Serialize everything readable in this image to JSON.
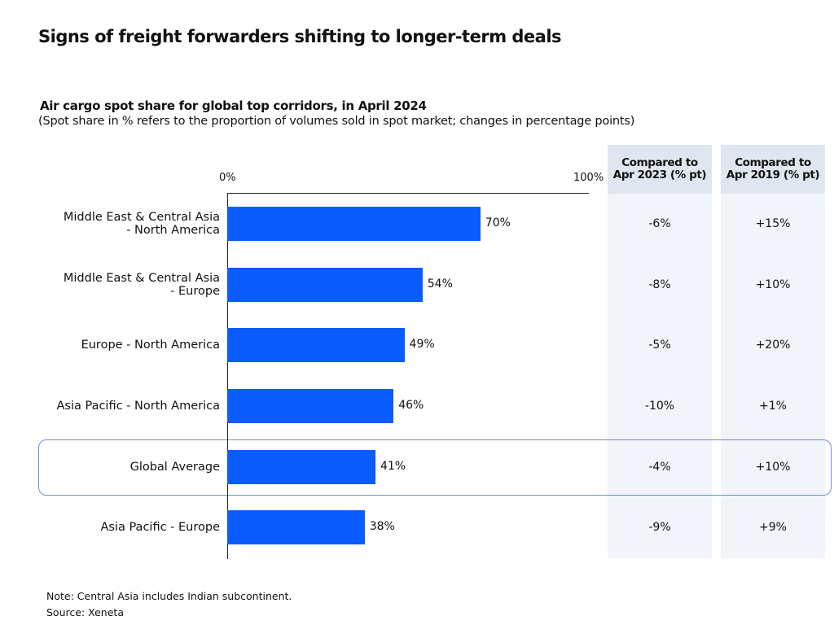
{
  "title": "Signs of freight forwarders shifting to longer-term deals",
  "chart_data": {
    "type": "bar",
    "title": "Air cargo spot share for global top corridors, in April 2024",
    "subtitle": "(Spot share in % refers to the proportion of volumes sold in spot market; changes in percentage points)",
    "xlim": [
      0,
      100
    ],
    "tick_labels": [
      "0%",
      "100%"
    ],
    "categories": [
      [
        "Middle East & Central Asia",
        "- North America"
      ],
      [
        "Middle East & Central Asia",
        "- Europe"
      ],
      [
        "Europe - North America"
      ],
      [
        "Asia Pacific - North America"
      ],
      [
        "Global Average"
      ],
      [
        "Asia Pacific - Europe"
      ]
    ],
    "values": [
      70,
      54,
      49,
      46,
      41,
      38
    ],
    "value_labels": [
      "70%",
      "54%",
      "49%",
      "46%",
      "41%",
      "38%"
    ],
    "highlighted_category": "Global Average",
    "bar_color": "#0a5cff",
    "table": {
      "columns": [
        {
          "header": [
            "Compared to",
            "Apr 2023 (% pt)"
          ],
          "values": [
            "-6%",
            "-8%",
            "-5%",
            "-10%",
            "-4%",
            "-9%"
          ]
        },
        {
          "header": [
            "Compared to",
            "Apr 2019 (% pt)"
          ],
          "values": [
            "+15%",
            "+10%",
            "+20%",
            "+1%",
            "+10%",
            "+9%"
          ]
        }
      ]
    }
  },
  "note": "Note: Central Asia includes Indian subcontinent.",
  "source": "Source: Xeneta"
}
